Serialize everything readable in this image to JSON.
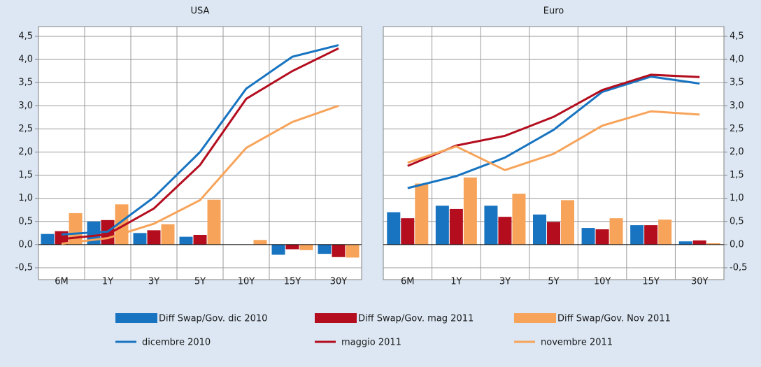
{
  "chart_data": [
    {
      "type": "combo",
      "title": "USA",
      "y_axis_side": "left",
      "categories": [
        "6M",
        "1Y",
        "3Y",
        "5Y",
        "10Y",
        "15Y",
        "30Y"
      ],
      "ylim": [
        -0.5,
        4.5
      ],
      "yticks": [
        {
          "value": -0.5,
          "label": "-0,5"
        },
        {
          "value": 0,
          "label": "0,0"
        },
        {
          "value": 0.5,
          "label": "0,5"
        },
        {
          "value": 1,
          "label": "1,0"
        },
        {
          "value": 1.5,
          "label": "1,5"
        },
        {
          "value": 2,
          "label": "2,0"
        },
        {
          "value": 2.5,
          "label": "2,5"
        },
        {
          "value": 3,
          "label": "3,0"
        },
        {
          "value": 3.5,
          "label": "3,5"
        },
        {
          "value": 4,
          "label": "4,0"
        },
        {
          "value": 4.5,
          "label": "4,5"
        }
      ],
      "grid": true,
      "series": [
        {
          "name": "Diff Swap/Gov. dic 2010",
          "type": "bar",
          "color": "#1874c1",
          "values": [
            0.23,
            0.5,
            0.25,
            0.17,
            null,
            -0.22,
            -0.2
          ]
        },
        {
          "name": "Diff Swap/Gov. mag 2011",
          "type": "bar",
          "color": "#b30d1e",
          "values": [
            0.29,
            0.53,
            0.31,
            0.21,
            null,
            -0.1,
            -0.27
          ]
        },
        {
          "name": "Diff Swap/Gov. Nov 2011",
          "type": "bar",
          "color": "#f7a45a",
          "values": [
            0.68,
            0.87,
            0.44,
            0.97,
            0.1,
            -0.12,
            -0.28
          ]
        },
        {
          "name": "dicembre 2010",
          "type": "line",
          "color": "#1874c1",
          "values": [
            0.22,
            0.28,
            1.02,
            2.0,
            3.37,
            4.06,
            4.31
          ]
        },
        {
          "name": "maggio 2011",
          "type": "line",
          "color": "#b30d1e",
          "values": [
            0.12,
            0.22,
            0.78,
            1.72,
            3.15,
            3.75,
            4.24
          ]
        },
        {
          "name": "novembre 2011",
          "type": "line",
          "color": "#f7a45a",
          "values": [
            0.02,
            0.14,
            0.45,
            0.96,
            2.09,
            2.65,
            3.0
          ]
        }
      ]
    },
    {
      "type": "combo",
      "title": "Euro",
      "y_axis_side": "right",
      "categories": [
        "6M",
        "1Y",
        "3Y",
        "5Y",
        "10Y",
        "15Y",
        "30Y"
      ],
      "ylim": [
        -0.5,
        4.5
      ],
      "yticks": [
        {
          "value": -0.5,
          "label": "-0,5"
        },
        {
          "value": 0,
          "label": "0,0"
        },
        {
          "value": 0.5,
          "label": "0,5"
        },
        {
          "value": 1,
          "label": "1,0"
        },
        {
          "value": 1.5,
          "label": "1,5"
        },
        {
          "value": 2,
          "label": "2,0"
        },
        {
          "value": 2.5,
          "label": "2,5"
        },
        {
          "value": 3,
          "label": "3,0"
        },
        {
          "value": 3.5,
          "label": "3,5"
        },
        {
          "value": 4,
          "label": "4,0"
        },
        {
          "value": 4.5,
          "label": "4,5"
        }
      ],
      "grid": true,
      "series": [
        {
          "type": "bar",
          "color": "#1874c1",
          "values": [
            0.7,
            0.84,
            0.84,
            0.65,
            0.36,
            0.42,
            0.07
          ]
        },
        {
          "type": "bar",
          "color": "#b30d1e",
          "values": [
            0.57,
            0.77,
            0.6,
            0.49,
            0.33,
            0.42,
            0.09
          ]
        },
        {
          "type": "bar",
          "color": "#f7a45a",
          "values": [
            1.32,
            1.45,
            1.1,
            0.96,
            0.57,
            0.54,
            0.03
          ]
        },
        {
          "type": "line",
          "color": "#1874c1",
          "values": [
            1.22,
            1.48,
            1.88,
            2.48,
            3.3,
            3.63,
            3.48
          ]
        },
        {
          "type": "line",
          "color": "#b30d1e",
          "values": [
            1.7,
            2.14,
            2.35,
            2.76,
            3.34,
            3.67,
            3.62
          ]
        },
        {
          "type": "line",
          "color": "#f7a45a",
          "values": [
            1.77,
            2.12,
            1.61,
            1.96,
            2.57,
            2.88,
            2.81
          ]
        }
      ]
    }
  ]
}
